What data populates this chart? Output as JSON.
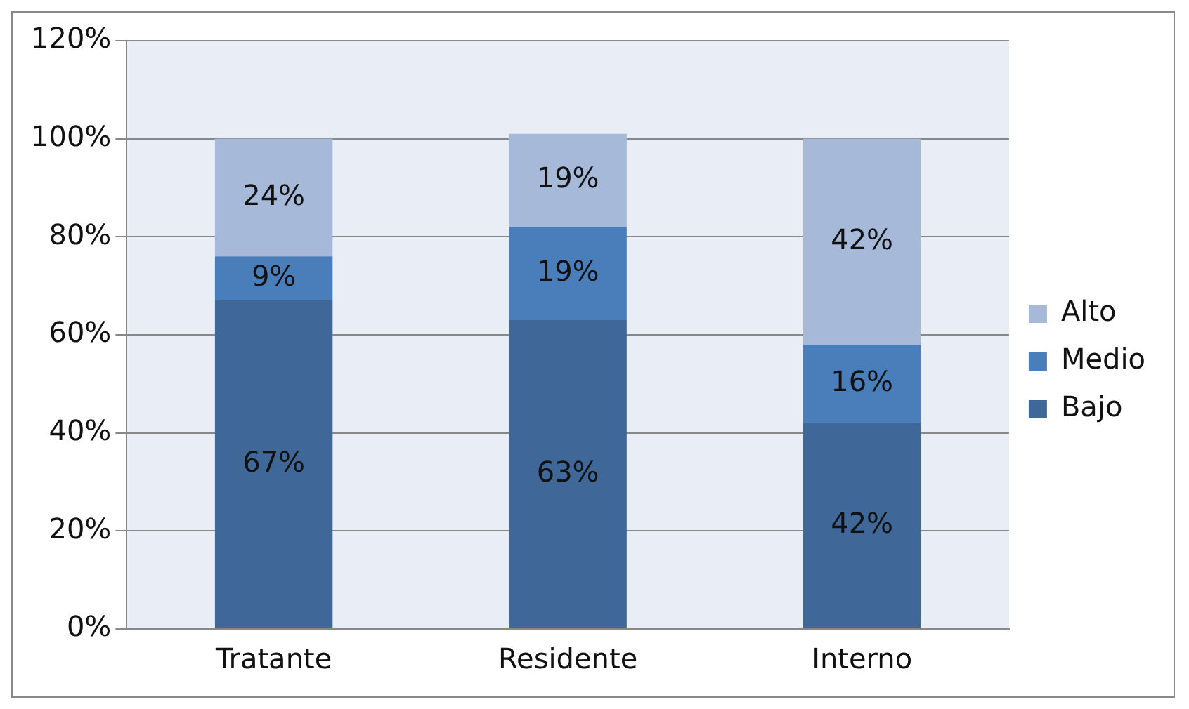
{
  "chart_data": {
    "type": "bar",
    "stacked": true,
    "categories": [
      "Tratante",
      "Residente",
      "Interno"
    ],
    "series": [
      {
        "name": "Bajo",
        "color": "#3f6797",
        "values": [
          67,
          63,
          42
        ],
        "value_labels": [
          "67%",
          "63%",
          "42%"
        ]
      },
      {
        "name": "Medio",
        "color": "#4a7ebb",
        "values": [
          9,
          19,
          16
        ],
        "value_labels": [
          "9%",
          "19%",
          "16%"
        ]
      },
      {
        "name": "Alto",
        "color": "#a7b9d8",
        "values": [
          24,
          19,
          42
        ],
        "value_labels": [
          "24%",
          "19%",
          "42%"
        ]
      }
    ],
    "ylim": [
      0,
      120
    ],
    "yticks": [
      {
        "value": 0,
        "label": "0%"
      },
      {
        "value": 20,
        "label": "20%"
      },
      {
        "value": 40,
        "label": "40%"
      },
      {
        "value": 60,
        "label": "60%"
      },
      {
        "value": 80,
        "label": "80%"
      },
      {
        "value": 100,
        "label": "100%"
      },
      {
        "value": 120,
        "label": "120%"
      }
    ],
    "grid": "y",
    "legend": "right"
  }
}
